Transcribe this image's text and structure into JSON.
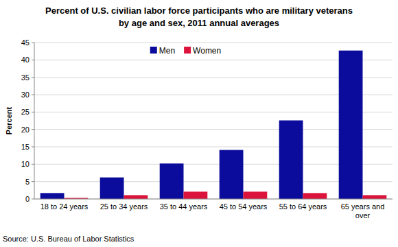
{
  "chart_data": {
    "type": "bar",
    "title": "Percent of U.S. civilian labor force participants who are military veterans by age and sex, 2011 annual averages",
    "y_label": "Percent",
    "source": "Source: U.S. Bureau of Labor Statistics",
    "categories": [
      "18 to 24 years",
      "25 to 34 years",
      "35 to 44 years",
      "45 to 54 years",
      "55 to 64 years",
      "65 years and over"
    ],
    "series": [
      {
        "name": "Men",
        "color": "#0c0c9c",
        "values": [
          1.7,
          6.2,
          10.2,
          14.1,
          22.6,
          42.7
        ]
      },
      {
        "name": "Women",
        "color": "#dc143c",
        "values": [
          0.3,
          1.1,
          2.1,
          2.1,
          1.7,
          1.1
        ]
      }
    ],
    "ylim": [
      0,
      45
    ],
    "yticks": [
      0,
      5,
      10,
      15,
      20,
      25,
      30,
      35,
      40,
      45
    ],
    "grid": true,
    "legend": "upper center"
  }
}
